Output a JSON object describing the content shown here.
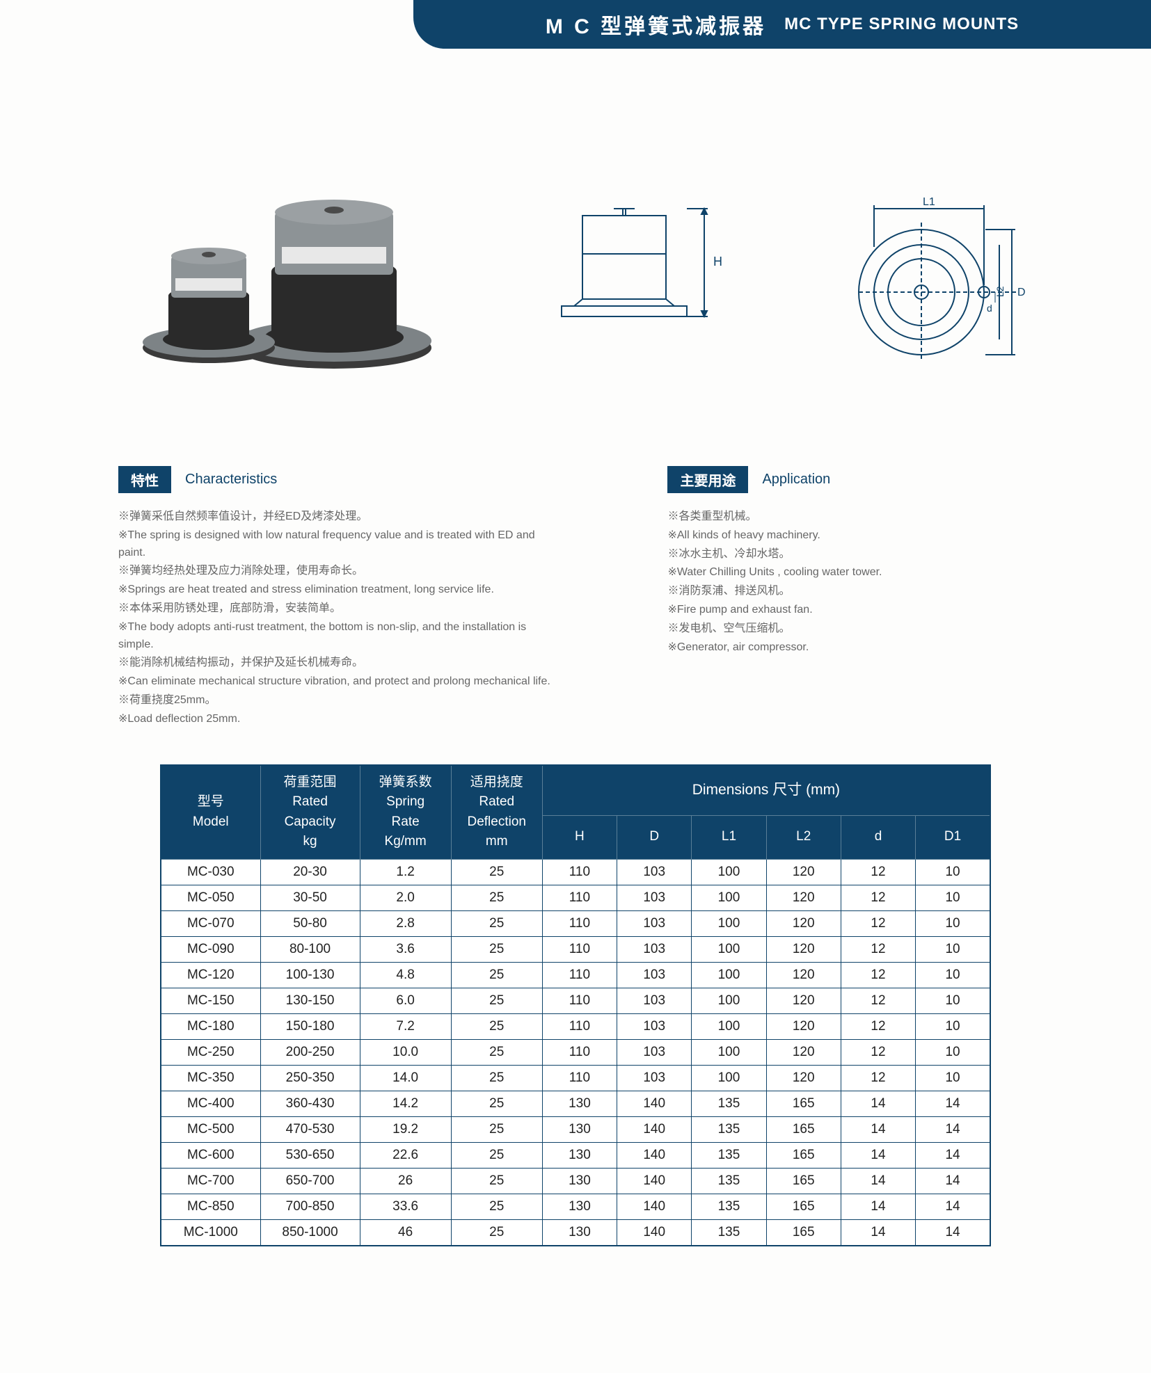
{
  "header": {
    "title_cn": "M C 型弹簧式减振器",
    "title_en": "MC TYPE SPRING MOUNTS"
  },
  "diagram_labels": {
    "L1": "L1",
    "L2": "L2",
    "D": "D",
    "d": "d",
    "H": "H"
  },
  "characteristics": {
    "badge": "特性",
    "title_en": "Characteristics",
    "lines": [
      "※弹簧采低自然频率值设计，并经ED及烤漆处理。",
      "※The spring is designed with low natural frequency value and is treated with ED and paint.",
      "※弹簧均经热处理及应力消除处理，使用寿命长。",
      "※Springs are heat treated and stress elimination treatment, long service life.",
      "※本体采用防锈处理，底部防滑，安装简单。",
      "※The body adopts anti-rust treatment, the bottom is non-slip, and the installation is simple.",
      "※能消除机械结构振动，并保护及延长机械寿命。",
      "※Can eliminate mechanical structure vibration, and protect and prolong mechanical life.",
      "※荷重挠度25mm。",
      "※Load deflection 25mm."
    ]
  },
  "application": {
    "badge": "主要用途",
    "title_en": "Application",
    "lines": [
      "※各类重型机械。",
      "※All kinds of heavy machinery.",
      "※冰水主机、冷却水塔。",
      "※Water Chilling Units , cooling water tower.",
      "※消防泵浦、排送风机。",
      "※Fire pump and exhaust fan.",
      "※发电机、空气压缩机。",
      "※Generator, air compressor."
    ]
  },
  "table": {
    "headers": {
      "model": "型号\nModel",
      "capacity": "荷重范围\nRated\nCapacity\nkg",
      "spring_rate": "弹簧系数\nSpring\nRate\nKg/mm",
      "deflection": "适用挠度\nRated\nDeflection\nmm",
      "dimensions_group": "Dimensions 尺寸 (mm)",
      "H": "H",
      "D": "D",
      "L1": "L1",
      "L2": "L2",
      "d": "d",
      "D1": "D1"
    },
    "header_colors": {
      "bg": "#0f4369",
      "text": "#ffffff",
      "border": "#5a7f97"
    },
    "cell_colors": {
      "bg": "#ffffff",
      "text": "#222222",
      "border": "#0f4369"
    },
    "col_widths_pct": [
      12,
      12,
      11,
      11,
      9,
      9,
      9,
      9,
      9,
      9
    ],
    "rows": [
      [
        "MC-030",
        "20-30",
        "1.2",
        "25",
        "110",
        "103",
        "100",
        "120",
        "12",
        "10"
      ],
      [
        "MC-050",
        "30-50",
        "2.0",
        "25",
        "110",
        "103",
        "100",
        "120",
        "12",
        "10"
      ],
      [
        "MC-070",
        "50-80",
        "2.8",
        "25",
        "110",
        "103",
        "100",
        "120",
        "12",
        "10"
      ],
      [
        "MC-090",
        "80-100",
        "3.6",
        "25",
        "110",
        "103",
        "100",
        "120",
        "12",
        "10"
      ],
      [
        "MC-120",
        "100-130",
        "4.8",
        "25",
        "110",
        "103",
        "100",
        "120",
        "12",
        "10"
      ],
      [
        "MC-150",
        "130-150",
        "6.0",
        "25",
        "110",
        "103",
        "100",
        "120",
        "12",
        "10"
      ],
      [
        "MC-180",
        "150-180",
        "7.2",
        "25",
        "110",
        "103",
        "100",
        "120",
        "12",
        "10"
      ],
      [
        "MC-250",
        "200-250",
        "10.0",
        "25",
        "110",
        "103",
        "100",
        "120",
        "12",
        "10"
      ],
      [
        "MC-350",
        "250-350",
        "14.0",
        "25",
        "110",
        "103",
        "100",
        "120",
        "12",
        "10"
      ],
      [
        "MC-400",
        "360-430",
        "14.2",
        "25",
        "130",
        "140",
        "135",
        "165",
        "14",
        "14"
      ],
      [
        "MC-500",
        "470-530",
        "19.2",
        "25",
        "130",
        "140",
        "135",
        "165",
        "14",
        "14"
      ],
      [
        "MC-600",
        "530-650",
        "22.6",
        "25",
        "130",
        "140",
        "135",
        "165",
        "14",
        "14"
      ],
      [
        "MC-700",
        "650-700",
        "26",
        "25",
        "130",
        "140",
        "135",
        "165",
        "14",
        "14"
      ],
      [
        "MC-850",
        "700-850",
        "33.6",
        "25",
        "130",
        "140",
        "135",
        "165",
        "14",
        "14"
      ],
      [
        "MC-1000",
        "850-1000",
        "46",
        "25",
        "130",
        "140",
        "135",
        "165",
        "14",
        "14"
      ]
    ]
  },
  "product_illustration": {
    "cap_color": "#8d9396",
    "body_color": "#2a2a2a",
    "base_color": "#7d8386",
    "flange_color": "#3a3a3a"
  },
  "diagram_style": {
    "stroke": "#0f4369",
    "stroke_width": 2,
    "label_color": "#0f4369",
    "label_fontsize": 18
  }
}
